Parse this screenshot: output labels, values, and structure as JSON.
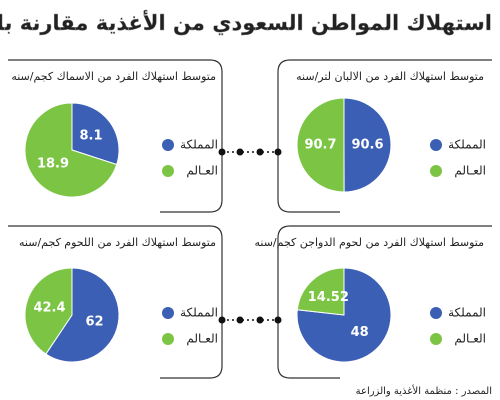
{
  "title": "استهلاك المواطن السعودي من الأغذية مقارنة بالاستهلاك العالمي",
  "source": "المصدر : منظمة الأغذية والزراعة",
  "chart_data": [
    {
      "type": "pie",
      "title": "متوسط استهلاك الفرد من الالبان لتر/سنه",
      "categories": [
        "المملكة",
        "العـالم"
      ],
      "values": [
        90.6,
        90.7
      ],
      "colors": [
        "#3a5fb4",
        "#7cc544"
      ]
    },
    {
      "type": "pie",
      "title": "متوسط استهلاك الفرد من الاسماك كجم/سنه",
      "categories": [
        "المملكة",
        "العـالم"
      ],
      "values": [
        8.1,
        18.9
      ],
      "colors": [
        "#3a5fb4",
        "#7cc544"
      ]
    },
    {
      "type": "pie",
      "title": "متوسط استهلاك الفرد من لحوم الدواجن كجم/سنه",
      "categories": [
        "المملكة",
        "العـالم"
      ],
      "values": [
        48,
        14.52
      ],
      "colors": [
        "#3a5fb4",
        "#7cc544"
      ]
    },
    {
      "type": "pie",
      "title": "متوسط استهلاك الفرد من اللحوم كجم/سنه",
      "categories": [
        "المملكة",
        "العـالم"
      ],
      "values": [
        62,
        42.4
      ],
      "colors": [
        "#3a5fb4",
        "#7cc544"
      ]
    }
  ]
}
